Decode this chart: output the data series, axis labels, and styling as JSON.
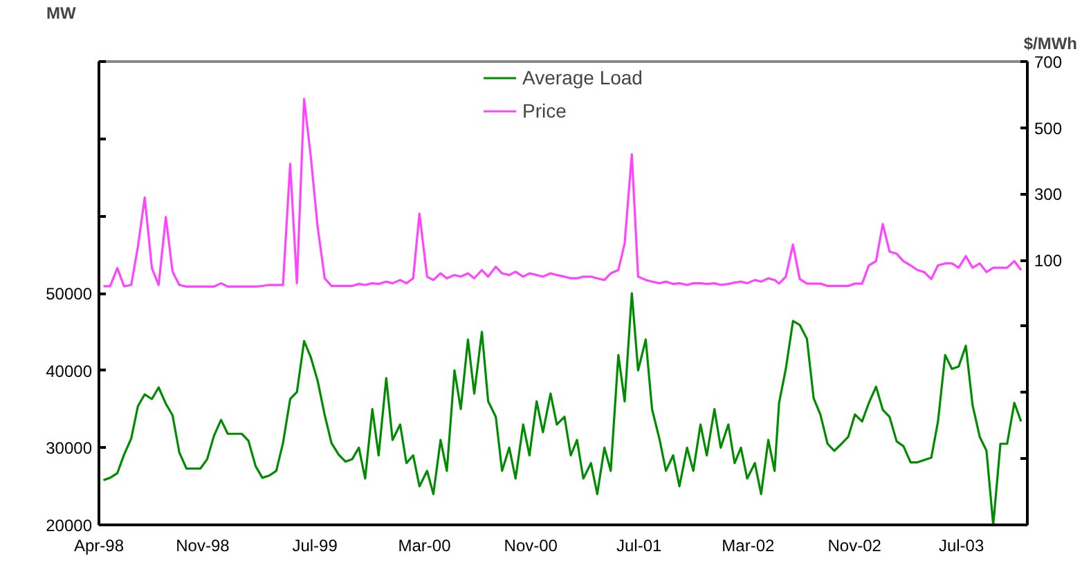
{
  "chart_data": {
    "type": "line",
    "ylabel": "MW",
    "y2label": "$/MWh",
    "x": [
      "1998-04-11",
      "1998-04-26",
      "1998-05-12",
      "1998-05-27",
      "1998-06-12",
      "1998-06-27",
      "1998-07-12",
      "1998-07-28",
      "1998-08-12",
      "1998-08-28",
      "1998-09-12",
      "1998-09-27",
      "1998-10-13",
      "1998-10-28",
      "1998-11-13",
      "1998-11-28",
      "1998-12-13",
      "1998-12-29",
      "1999-01-13",
      "1999-01-29",
      "1999-02-13",
      "1999-02-28",
      "1999-03-16",
      "1999-03-31",
      "1999-04-16",
      "1999-05-01",
      "1999-05-16",
      "1999-06-01",
      "1999-06-16",
      "1999-07-02",
      "1999-07-17",
      "1999-08-01",
      "1999-08-17",
      "1999-09-01",
      "1999-09-17",
      "1999-10-02",
      "1999-10-17",
      "1999-11-01",
      "1999-11-15",
      "1999-12-01",
      "1999-12-15",
      "2000-01-01",
      "2000-01-15",
      "2000-02-01",
      "2000-02-15",
      "2000-03-01",
      "2000-03-15",
      "2000-04-01",
      "2000-04-15",
      "2000-05-01",
      "2000-05-15",
      "2000-06-01",
      "2000-06-15",
      "2000-07-01",
      "2000-07-15",
      "2000-08-01",
      "2000-08-15",
      "2000-09-01",
      "2000-09-15",
      "2000-10-01",
      "2000-10-15",
      "2000-11-01",
      "2000-11-15",
      "2000-12-01",
      "2000-12-15",
      "2001-01-01",
      "2001-01-15",
      "2001-02-01",
      "2001-02-15",
      "2001-03-01",
      "2001-03-15",
      "2001-04-01",
      "2001-04-15",
      "2001-05-01",
      "2001-05-15",
      "2001-06-01",
      "2001-06-15",
      "2001-07-01",
      "2001-07-15",
      "2001-08-01",
      "2001-08-15",
      "2001-09-01",
      "2001-09-15",
      "2001-10-01",
      "2001-10-15",
      "2001-11-01",
      "2001-11-15",
      "2001-12-01",
      "2001-12-15",
      "2002-01-01",
      "2002-01-15",
      "2002-02-01",
      "2002-02-15",
      "2002-03-01",
      "2002-03-15",
      "2002-04-01",
      "2002-04-15",
      "2002-05-01",
      "2002-05-15",
      "2002-05-25",
      "2002-06-09",
      "2002-06-25",
      "2002-07-10",
      "2002-07-26",
      "2002-08-10",
      "2002-08-25",
      "2002-09-10",
      "2002-09-25",
      "2002-10-11",
      "2002-10-26",
      "2002-11-10",
      "2002-11-26",
      "2002-12-11",
      "2002-12-27",
      "2003-01-11",
      "2003-01-26",
      "2003-02-11",
      "2003-02-26",
      "2003-03-14",
      "2003-03-29",
      "2003-04-13",
      "2003-04-29",
      "2003-05-14",
      "2003-05-30",
      "2003-06-14",
      "2003-06-29",
      "2003-07-15",
      "2003-07-30",
      "2003-08-15",
      "2003-08-30",
      "2003-09-14",
      "2003-09-30",
      "2003-10-15",
      "2003-10-31",
      "2003-11-15"
    ],
    "series": [
      {
        "name": "Average Load",
        "color": "#008c00",
        "values": [
          25800,
          26100,
          26700,
          29100,
          31200,
          35400,
          36900,
          36300,
          37800,
          35700,
          34200,
          29400,
          27300,
          27300,
          27300,
          28500,
          31500,
          33600,
          31800,
          31800,
          31800,
          30900,
          27600,
          26100,
          26400,
          27000,
          30600,
          36300,
          37200,
          43800,
          41700,
          38700,
          34200,
          30600,
          29100,
          28200,
          28500,
          30000,
          26000,
          35000,
          29000,
          39000,
          31000,
          33000,
          28000,
          29000,
          25000,
          27000,
          24000,
          31000,
          27000,
          40000,
          35000,
          44000,
          37000,
          45000,
          36000,
          34000,
          27000,
          30000,
          26000,
          33000,
          29000,
          36000,
          32000,
          37000,
          33000,
          34000,
          29000,
          31000,
          26000,
          28000,
          24000,
          30000,
          27000,
          42000,
          36000,
          50000,
          40000,
          44000,
          35000,
          31000,
          27000,
          29000,
          25000,
          30000,
          27000,
          33000,
          29000,
          35000,
          30000,
          33000,
          28000,
          30000,
          26000,
          28000,
          24000,
          31000,
          27000,
          35800,
          40200,
          46400,
          45900,
          44100,
          36400,
          34300,
          30500,
          29600,
          30500,
          31400,
          34300,
          33400,
          35800,
          37900,
          34900,
          34000,
          30800,
          30200,
          28100,
          28100,
          28400,
          28700,
          33400,
          42000,
          40200,
          40500,
          43200,
          35500,
          31400,
          29600,
          20000,
          30500,
          30500,
          35800,
          33400
        ]
      },
      {
        "name": "Price",
        "color": "#ff44ff",
        "axis": "y2",
        "values": [
          21,
          21,
          76,
          21,
          25,
          142,
          289,
          76,
          25,
          230,
          65,
          25,
          20,
          20,
          20,
          20,
          20,
          30,
          20,
          20,
          20,
          20,
          20,
          22,
          25,
          25,
          25,
          391,
          30,
          587,
          412,
          202,
          45,
          22,
          22,
          22,
          22,
          28,
          25,
          30,
          28,
          35,
          30,
          40,
          30,
          45,
          240,
          50,
          40,
          60,
          45,
          55,
          50,
          60,
          45,
          70,
          50,
          80,
          60,
          55,
          65,
          50,
          60,
          55,
          50,
          60,
          55,
          50,
          45,
          45,
          50,
          50,
          45,
          40,
          60,
          70,
          150,
          420,
          50,
          40,
          35,
          30,
          35,
          28,
          30,
          25,
          30,
          30,
          28,
          30,
          25,
          28,
          32,
          35,
          30,
          40,
          35,
          45,
          40,
          29,
          50,
          147,
          43,
          29,
          29,
          29,
          22,
          22,
          22,
          22,
          29,
          29,
          84,
          97,
          209,
          126,
          119,
          97,
          84,
          70,
          64,
          43,
          84,
          90,
          90,
          77,
          112,
          77,
          90,
          64,
          77,
          77,
          77,
          97,
          70
        ]
      }
    ],
    "xlim": [
      "1998-04-01",
      "2003-11-29"
    ],
    "xticks": [
      {
        "value": "1998-04-01",
        "label": "Apr-98"
      },
      {
        "value": "1998-11-18",
        "label": "Nov-98"
      },
      {
        "value": "1999-07-26",
        "label": "Jul-99"
      },
      {
        "value": "2000-03-26",
        "label": "Mar-00"
      },
      {
        "value": "2000-11-18",
        "label": "Nov-00"
      },
      {
        "value": "2001-07-17",
        "label": "Jul-01"
      },
      {
        "value": "2002-03-17",
        "label": "Mar-02"
      },
      {
        "value": "2002-11-09",
        "label": "Nov-02"
      },
      {
        "value": "2003-07-05",
        "label": "Jul-03"
      }
    ],
    "ylim": [
      20000,
      80000
    ],
    "yticks": [
      20000,
      30000,
      40000,
      50000,
      {
        "value": 60000,
        "label": null
      },
      {
        "value": 70000,
        "label": null
      },
      {
        "value": 80000,
        "label": null
      }
    ],
    "y2lim": [
      -700,
      700
    ],
    "y2ticks": [
      {
        "value": -700,
        "label": null
      },
      {
        "value": -500,
        "label": null
      },
      {
        "value": -300,
        "label": null
      },
      {
        "value": -100,
        "label": null
      },
      100,
      300,
      500,
      700
    ],
    "grid": false,
    "legend": "top",
    "line_style": "solid"
  }
}
